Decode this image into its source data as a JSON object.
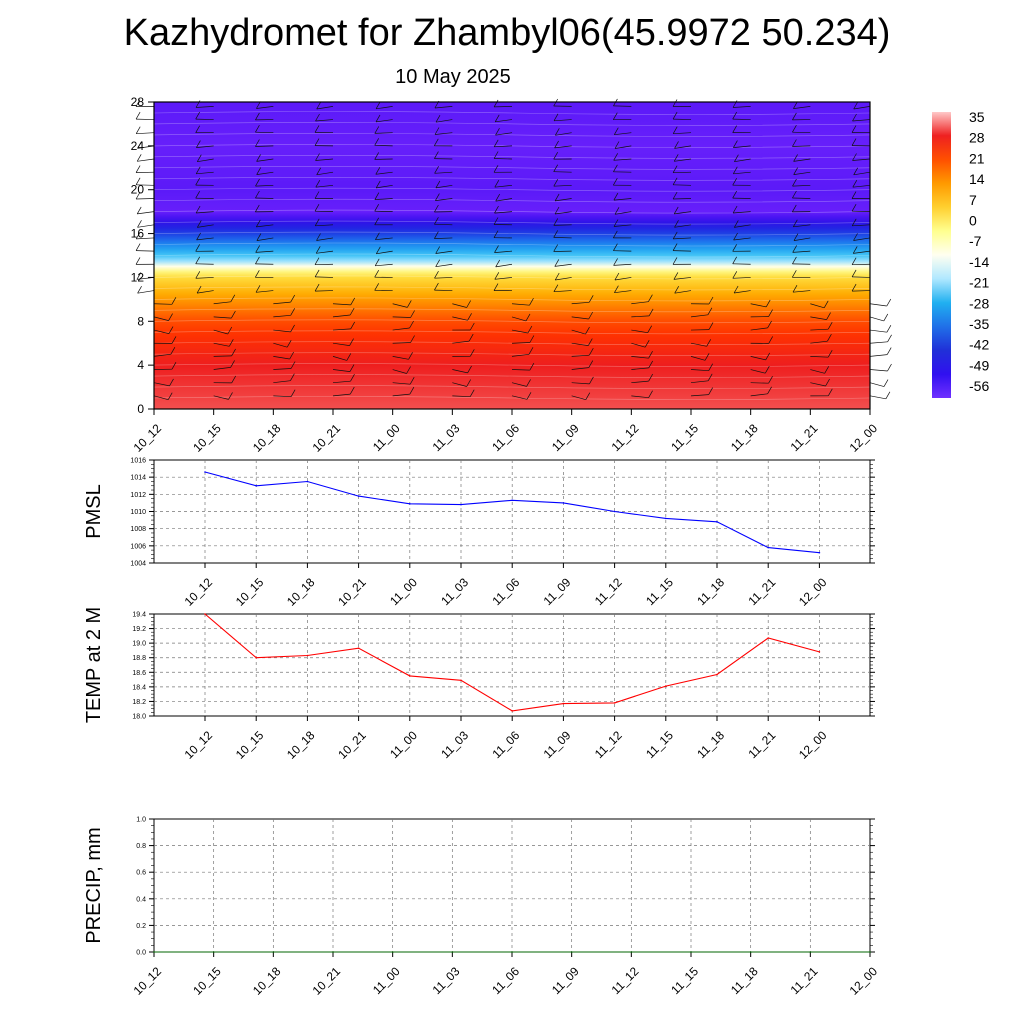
{
  "title": "Kazhydromet for Zhambyl06(45.9972 50.234)",
  "subtitle": "10 May 2025",
  "times": [
    "10_12",
    "10_15",
    "10_18",
    "10_21",
    "11_00",
    "11_03",
    "11_06",
    "11_09",
    "11_12",
    "11_15",
    "11_18",
    "11_21",
    "12_00"
  ],
  "colorbar": {
    "labels": [
      "35",
      "28",
      "21",
      "14",
      "7",
      "0",
      "-7",
      "-14",
      "-21",
      "-28",
      "-35",
      "-42",
      "-49",
      "-56"
    ],
    "colors": [
      "#ffc8c8",
      "#ee2020",
      "#ff5000",
      "#ff9a00",
      "#ffd030",
      "#ffff90",
      "#fffff0",
      "#b0e8ff",
      "#20b0f0",
      "#2070e8",
      "#2030d8",
      "#3010f0",
      "#7030ff"
    ]
  },
  "chart_data": [
    {
      "type": "heatmap",
      "name": "cross-section",
      "x": [
        "10_12",
        "10_15",
        "10_18",
        "10_21",
        "11_00",
        "11_03",
        "11_06",
        "11_09",
        "11_12",
        "11_15",
        "11_18",
        "11_21",
        "12_00"
      ],
      "ylim": [
        0,
        28
      ],
      "yticks": [
        0,
        4,
        8,
        12,
        16,
        20,
        24,
        28
      ],
      "approx_profile": [
        {
          "y": 0,
          "value": 30
        },
        {
          "y": 4,
          "value": 28
        },
        {
          "y": 8,
          "value": 18
        },
        {
          "y": 12,
          "value": 0
        },
        {
          "y": 14,
          "value": -20
        },
        {
          "y": 16,
          "value": -40
        },
        {
          "y": 18,
          "value": -60
        },
        {
          "y": 20,
          "value": -58
        },
        {
          "y": 24,
          "value": -60
        },
        {
          "y": 28,
          "value": -58
        }
      ]
    },
    {
      "type": "line",
      "name": "pmsl",
      "ylabel": "PMSL",
      "x": [
        "10_12",
        "10_15",
        "10_18",
        "10_21",
        "11_00",
        "11_03",
        "11_06",
        "11_09",
        "11_12",
        "11_15",
        "11_18",
        "11_21",
        "12_00"
      ],
      "values": [
        1014.6,
        1013.0,
        1013.5,
        1011.8,
        1010.9,
        1010.8,
        1011.3,
        1011.0,
        1010.0,
        1009.2,
        1008.8,
        1005.8,
        1005.2
      ],
      "ylim": [
        1004,
        1016
      ],
      "yticks": [
        "1004",
        "1006",
        "1008",
        "1010",
        "1012",
        "1014",
        "1016"
      ],
      "color": "#0000ff"
    },
    {
      "type": "line",
      "name": "t2m",
      "ylabel": "TEMP at 2 M",
      "x": [
        "10_12",
        "10_15",
        "10_18",
        "10_21",
        "11_00",
        "11_03",
        "11_06",
        "11_09",
        "11_12",
        "11_15",
        "11_18",
        "11_21",
        "12_00"
      ],
      "values": [
        19.4,
        18.8,
        18.83,
        18.93,
        18.55,
        18.49,
        18.07,
        18.17,
        18.18,
        18.41,
        18.57,
        19.07,
        18.88
      ],
      "ylim": [
        18.0,
        19.4
      ],
      "yticks": [
        "18.0",
        "18.2",
        "18.4",
        "18.6",
        "18.8",
        "19.0",
        "19.2",
        "19.4"
      ],
      "color": "#ff0000"
    },
    {
      "type": "line",
      "name": "precip",
      "ylabel": "PRECIP, mm",
      "x": [
        "10_12",
        "10_15",
        "10_18",
        "10_21",
        "11_00",
        "11_03",
        "11_06",
        "11_09",
        "11_12",
        "11_15",
        "11_18",
        "11_21",
        "12_00"
      ],
      "values": [
        0,
        0,
        0,
        0,
        0,
        0,
        0,
        0,
        0,
        0,
        0,
        0,
        0
      ],
      "ylim": [
        0,
        1
      ],
      "yticks": [
        "0.0",
        "0.2",
        "0.4",
        "0.6",
        "0.8",
        "1.0"
      ],
      "color": "#006400"
    }
  ]
}
